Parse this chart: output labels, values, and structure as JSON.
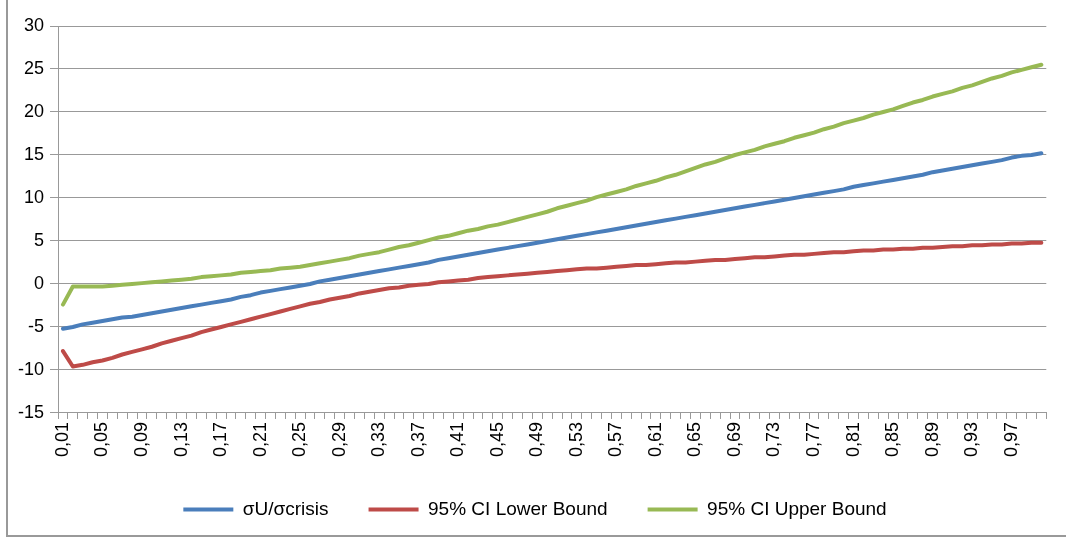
{
  "chart_data": {
    "type": "line",
    "categories": [
      "0,01",
      null,
      null,
      null,
      "0,05",
      null,
      null,
      null,
      "0,09",
      null,
      null,
      null,
      "0,13",
      null,
      null,
      null,
      "0,17",
      null,
      null,
      null,
      "0,21",
      null,
      null,
      null,
      "0,25",
      null,
      null,
      null,
      "0,29",
      null,
      null,
      null,
      "0,33",
      null,
      null,
      null,
      "0,37",
      null,
      null,
      null,
      "0,41",
      null,
      null,
      null,
      "0,45",
      null,
      null,
      null,
      "0,49",
      null,
      null,
      null,
      "0,53",
      null,
      null,
      null,
      "0,57",
      null,
      null,
      null,
      "0,61",
      null,
      null,
      null,
      "0,65",
      null,
      null,
      null,
      "0,69",
      null,
      null,
      null,
      "0,73",
      null,
      null,
      null,
      "0,77",
      null,
      null,
      null,
      "0,81",
      null,
      null,
      null,
      "0,85",
      null,
      null,
      null,
      "0,89",
      null,
      null,
      null,
      "0,93",
      null,
      null,
      null,
      "0,97",
      null,
      null,
      null
    ],
    "series": [
      {
        "name": "σU/σcrisis",
        "color": "#4a7ebb",
        "values": [
          -5.2,
          -5.0,
          -4.7,
          -4.5,
          -4.3,
          -4.1,
          -3.9,
          -3.8,
          -3.6,
          -3.4,
          -3.2,
          -3.0,
          -2.8,
          -2.6,
          -2.4,
          -2.2,
          -2.0,
          -1.8,
          -1.5,
          -1.3,
          -1.0,
          -0.8,
          -0.6,
          -0.4,
          -0.2,
          0.0,
          0.3,
          0.5,
          0.7,
          0.9,
          1.1,
          1.3,
          1.5,
          1.7,
          1.9,
          2.1,
          2.3,
          2.5,
          2.8,
          3.0,
          3.2,
          3.4,
          3.6,
          3.8,
          4.0,
          4.2,
          4.4,
          4.6,
          4.8,
          5.0,
          5.2,
          5.4,
          5.6,
          5.8,
          6.0,
          6.2,
          6.4,
          6.6,
          6.8,
          7.0,
          7.2,
          7.4,
          7.6,
          7.8,
          8.0,
          8.2,
          8.4,
          8.6,
          8.8,
          9.0,
          9.2,
          9.4,
          9.6,
          9.8,
          10.0,
          10.2,
          10.4,
          10.6,
          10.8,
          11.0,
          11.3,
          11.5,
          11.7,
          11.9,
          12.1,
          12.3,
          12.5,
          12.7,
          13.0,
          13.2,
          13.4,
          13.6,
          13.8,
          14.0,
          14.2,
          14.4,
          14.7,
          14.9,
          15.0,
          15.2
        ]
      },
      {
        "name": "95% CI Lower Bound",
        "color": "#be4b48",
        "values": [
          -7.8,
          -9.6,
          -9.4,
          -9.1,
          -8.9,
          -8.6,
          -8.2,
          -7.9,
          -7.6,
          -7.3,
          -6.9,
          -6.6,
          -6.3,
          -6.0,
          -5.6,
          -5.3,
          -5.0,
          -4.7,
          -4.4,
          -4.1,
          -3.8,
          -3.5,
          -3.2,
          -2.9,
          -2.6,
          -2.3,
          -2.1,
          -1.8,
          -1.6,
          -1.4,
          -1.1,
          -0.9,
          -0.7,
          -0.5,
          -0.4,
          -0.2,
          -0.1,
          0.0,
          0.2,
          0.3,
          0.4,
          0.5,
          0.7,
          0.8,
          0.9,
          1.0,
          1.1,
          1.2,
          1.3,
          1.4,
          1.5,
          1.6,
          1.7,
          1.8,
          1.8,
          1.9,
          2.0,
          2.1,
          2.2,
          2.2,
          2.3,
          2.4,
          2.5,
          2.5,
          2.6,
          2.7,
          2.8,
          2.8,
          2.9,
          3.0,
          3.1,
          3.1,
          3.2,
          3.3,
          3.4,
          3.4,
          3.5,
          3.6,
          3.7,
          3.7,
          3.8,
          3.9,
          3.9,
          4.0,
          4.0,
          4.1,
          4.1,
          4.2,
          4.2,
          4.3,
          4.4,
          4.4,
          4.5,
          4.5,
          4.6,
          4.6,
          4.7,
          4.7,
          4.8,
          4.8
        ]
      },
      {
        "name": "95% CI Upper Bound",
        "color": "#98b954",
        "values": [
          -2.4,
          -0.3,
          -0.3,
          -0.3,
          -0.3,
          -0.2,
          -0.1,
          0.0,
          0.1,
          0.2,
          0.3,
          0.4,
          0.5,
          0.6,
          0.8,
          0.9,
          1.0,
          1.1,
          1.3,
          1.4,
          1.5,
          1.6,
          1.8,
          1.9,
          2.0,
          2.2,
          2.4,
          2.6,
          2.8,
          3.0,
          3.3,
          3.5,
          3.7,
          4.0,
          4.3,
          4.5,
          4.8,
          5.1,
          5.4,
          5.6,
          5.9,
          6.2,
          6.4,
          6.7,
          6.9,
          7.2,
          7.5,
          7.8,
          8.1,
          8.4,
          8.8,
          9.1,
          9.4,
          9.7,
          10.1,
          10.4,
          10.7,
          11.0,
          11.4,
          11.7,
          12.0,
          12.4,
          12.7,
          13.1,
          13.5,
          13.9,
          14.2,
          14.6,
          15.0,
          15.3,
          15.6,
          16.0,
          16.3,
          16.6,
          17.0,
          17.3,
          17.6,
          18.0,
          18.3,
          18.7,
          19.0,
          19.3,
          19.7,
          20.0,
          20.3,
          20.7,
          21.1,
          21.4,
          21.8,
          22.1,
          22.4,
          22.8,
          23.1,
          23.5,
          23.9,
          24.2,
          24.6,
          24.9,
          25.2,
          25.5
        ]
      }
    ],
    "ylim": [
      -15,
      30
    ],
    "yticks": [
      -15,
      -10,
      -5,
      0,
      5,
      10,
      15,
      20,
      25,
      30
    ],
    "grid": "y",
    "legend": "bottom",
    "marker": "none",
    "line_style": "solid"
  }
}
